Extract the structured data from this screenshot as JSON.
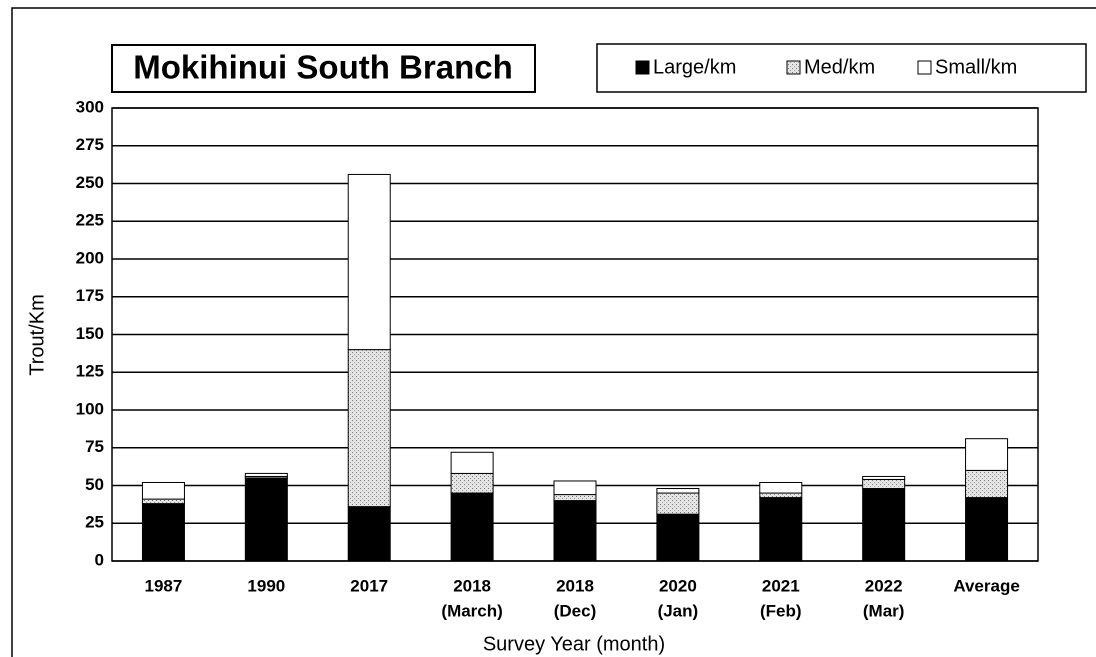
{
  "chart_data": {
    "type": "bar",
    "stacked": true,
    "title": "Mokihinui South Branch",
    "x_label": "Survey Year (month)",
    "y_label": "Trout/Km",
    "categories": [
      [
        "1987"
      ],
      [
        "1990"
      ],
      [
        "2017"
      ],
      [
        "2018",
        "(March)"
      ],
      [
        "2018",
        "(Dec)"
      ],
      [
        "2020",
        "(Jan)"
      ],
      [
        "2021",
        "(Feb)"
      ],
      [
        "2022",
        "(Mar)"
      ],
      [
        "Average"
      ]
    ],
    "series": [
      {
        "name": "Large/km",
        "color": "#000000",
        "values": [
          38,
          55,
          36,
          45,
          40,
          31,
          42,
          48,
          42
        ]
      },
      {
        "name": "Med/km",
        "color": "#d0d0d0",
        "values": [
          3,
          1,
          104,
          13,
          4,
          14,
          3,
          6,
          18
        ]
      },
      {
        "name": "Small/km",
        "color": "#ffffff",
        "values": [
          11,
          2,
          116,
          14,
          9,
          3,
          7,
          2,
          21
        ]
      }
    ],
    "ylim": [
      0,
      300
    ],
    "yticks": [
      0,
      25,
      50,
      75,
      100,
      125,
      150,
      175,
      200,
      225,
      250,
      275,
      300
    ],
    "grid": true,
    "legend": "top-right"
  }
}
